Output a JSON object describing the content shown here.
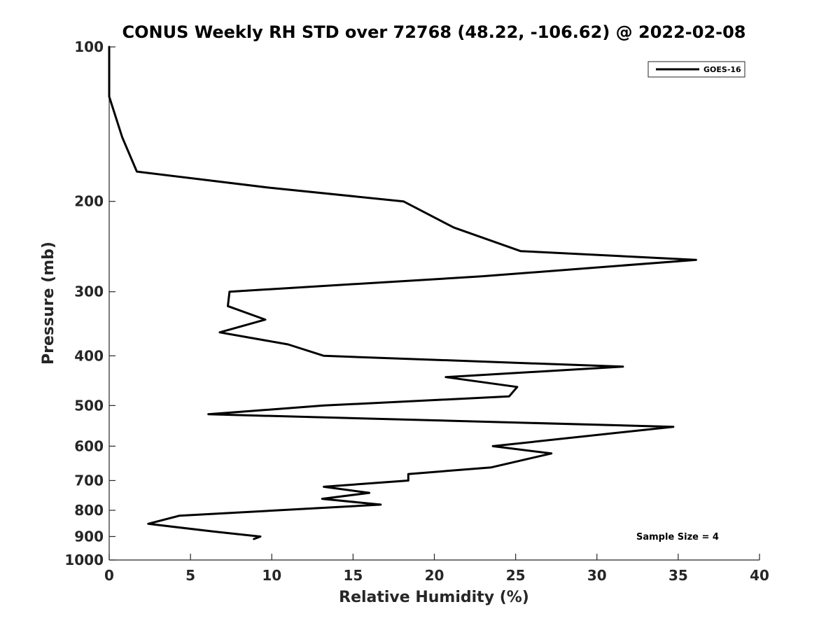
{
  "chart_data": {
    "type": "line",
    "title": "CONUS Weekly RH STD over 72768 (48.22, -106.62) @ 2022-02-08",
    "xlabel": "Relative Humidity (%)",
    "ylabel": "Pressure (mb)",
    "xlim": [
      0,
      40
    ],
    "ylim": [
      100,
      1000
    ],
    "y_scale": "log",
    "y_direction": "reversed",
    "x_ticks": [
      0,
      5,
      10,
      15,
      20,
      25,
      30,
      35,
      40
    ],
    "y_ticks": [
      100,
      200,
      300,
      400,
      500,
      600,
      700,
      800,
      900,
      1000
    ],
    "grid": false,
    "legend": {
      "position": "top-right",
      "entries": [
        "GOES-16"
      ]
    },
    "annotation": "Sample Size = 4",
    "line_color": "#000000",
    "series": [
      {
        "name": "GOES-16",
        "points": [
          [
            0.0,
            100
          ],
          [
            0.0,
            125
          ],
          [
            0.8,
            150
          ],
          [
            1.7,
            175
          ],
          [
            9.8,
            188
          ],
          [
            18.1,
            200
          ],
          [
            21.2,
            225
          ],
          [
            25.3,
            250
          ],
          [
            36.1,
            260
          ],
          [
            22.9,
            280
          ],
          [
            7.4,
            300
          ],
          [
            7.3,
            320
          ],
          [
            9.6,
            340
          ],
          [
            6.8,
            360
          ],
          [
            11.0,
            380
          ],
          [
            13.2,
            400
          ],
          [
            31.6,
            420
          ],
          [
            20.7,
            440
          ],
          [
            25.1,
            460
          ],
          [
            24.6,
            480
          ],
          [
            13.2,
            500
          ],
          [
            6.1,
            520
          ],
          [
            34.7,
            550
          ],
          [
            23.6,
            600
          ],
          [
            27.2,
            620
          ],
          [
            23.5,
            660
          ],
          [
            18.4,
            680
          ],
          [
            18.4,
            700
          ],
          [
            13.2,
            720
          ],
          [
            16.0,
            740
          ],
          [
            13.1,
            760
          ],
          [
            16.7,
            780
          ],
          [
            4.3,
            820
          ],
          [
            2.4,
            850
          ],
          [
            6.4,
            880
          ],
          [
            9.3,
            900
          ],
          [
            8.9,
            910
          ]
        ]
      }
    ]
  }
}
